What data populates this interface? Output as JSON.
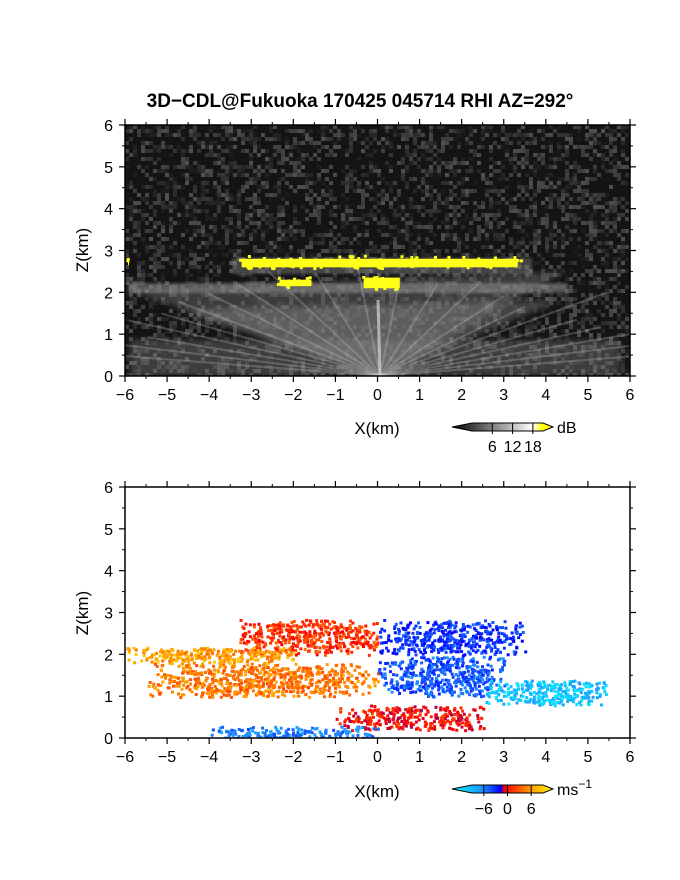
{
  "chart_data": [
    {
      "type": "heatmap",
      "title": "3D−CDL@Fukuoka 170425 045714 RHI AZ=292°",
      "xlabel": "X(km)",
      "ylabel": "Z(km)",
      "xlim": [
        -6,
        6
      ],
      "ylim": [
        0,
        6
      ],
      "xticks": [
        "−6",
        "−5",
        "−4",
        "−3",
        "−2",
        "−1",
        "0",
        "1",
        "2",
        "3",
        "4",
        "5",
        "6"
      ],
      "yticks": [
        "0",
        "1",
        "2",
        "3",
        "4",
        "5",
        "6"
      ],
      "colorbar": {
        "unit": "dB",
        "ticks": [
          "6",
          "12",
          "18"
        ],
        "tick_values": [
          6,
          12,
          18
        ],
        "range": [
          0,
          21
        ],
        "colors": [
          "#000000",
          "#ffffff",
          "#ffff00"
        ]
      },
      "features": [
        {
          "kind": "layer",
          "x": [
            -3.3,
            3.4
          ],
          "z": [
            2.55,
            2.85
          ],
          "value": 20
        },
        {
          "kind": "layer",
          "x": [
            -2.4,
            -1.5
          ],
          "z": [
            2.1,
            2.35
          ],
          "value": 20
        },
        {
          "kind": "layer",
          "x": [
            -0.4,
            0.6
          ],
          "z": [
            2.05,
            2.4
          ],
          "value": 20
        },
        {
          "kind": "layer",
          "x": [
            -6.0,
            -5.85
          ],
          "z": [
            2.6,
            2.8
          ],
          "value": 20
        }
      ]
    },
    {
      "type": "heatmap",
      "title": "",
      "xlabel": "X(km)",
      "ylabel": "Z(km)",
      "xlim": [
        -6,
        6
      ],
      "ylim": [
        0,
        6
      ],
      "xticks": [
        "−6",
        "−5",
        "−4",
        "−3",
        "−2",
        "−1",
        "0",
        "1",
        "2",
        "3",
        "4",
        "5",
        "6"
      ],
      "yticks": [
        "0",
        "1",
        "2",
        "3",
        "4",
        "5",
        "6"
      ],
      "colorbar": {
        "unit": "ms−1",
        "unit_base": "ms",
        "unit_exp": "−1",
        "ticks": [
          "−6",
          "0",
          "6"
        ],
        "tick_values": [
          -6,
          0,
          6
        ],
        "range": [
          -9,
          9
        ],
        "colors": [
          "#00ffff",
          "#1e90ff",
          "#0000ff",
          "#ff0000",
          "#ff8c00",
          "#ffff00"
        ]
      },
      "features": [
        {
          "kind": "region",
          "x": [
            -3.3,
            0.0
          ],
          "z": [
            2.0,
            2.85
          ],
          "value": 3
        },
        {
          "kind": "region",
          "x": [
            0.0,
            3.5
          ],
          "z": [
            2.0,
            2.85
          ],
          "value": -3
        },
        {
          "kind": "region",
          "x": [
            -6.0,
            -2.0
          ],
          "z": [
            1.8,
            2.2
          ],
          "value": 6
        },
        {
          "kind": "region",
          "x": [
            -5.5,
            0.0
          ],
          "z": [
            1.0,
            1.8
          ],
          "value": 5
        },
        {
          "kind": "region",
          "x": [
            0.0,
            3.0
          ],
          "z": [
            1.0,
            2.0
          ],
          "value": -4
        },
        {
          "kind": "region",
          "x": [
            2.5,
            5.5
          ],
          "z": [
            0.8,
            1.4
          ],
          "value": -7
        },
        {
          "kind": "region",
          "x": [
            -1.0,
            2.5
          ],
          "z": [
            0.2,
            0.8
          ],
          "value": 2
        },
        {
          "kind": "region",
          "x": [
            -4.0,
            0.0
          ],
          "z": [
            0.0,
            0.3
          ],
          "value": -5
        }
      ]
    }
  ]
}
